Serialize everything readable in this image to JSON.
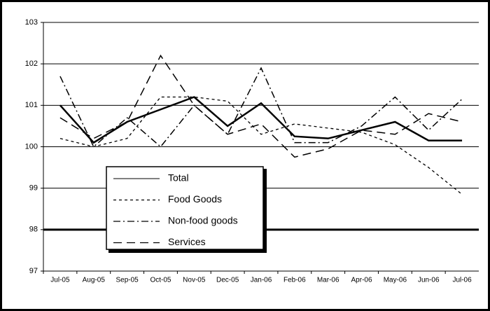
{
  "chart_data": {
    "type": "line",
    "categories": [
      "Jul-05",
      "Aug-05",
      "Sep-05",
      "Oct-05",
      "Nov-05",
      "Dec-05",
      "Jan-06",
      "Feb-06",
      "Mar-06",
      "Apr-06",
      "May-06",
      "Jun-06",
      "Jul-06"
    ],
    "series": [
      {
        "name": "Total",
        "color": "#000000",
        "dash": "solid",
        "values": [
          101.0,
          100.1,
          100.6,
          100.9,
          101.2,
          100.5,
          101.05,
          100.25,
          100.2,
          100.4,
          100.6,
          100.15,
          100.15
        ]
      },
      {
        "name": "Food Goods",
        "color": "#000000",
        "dash": "short",
        "values": [
          100.2,
          100.0,
          100.2,
          101.2,
          101.2,
          101.1,
          100.3,
          100.55,
          100.45,
          100.35,
          100.05,
          99.5,
          98.85
        ]
      },
      {
        "name": "Non-food goods",
        "color": "#000000",
        "dash": "dashdot",
        "values": [
          101.7,
          100.0,
          100.7,
          100.0,
          101.0,
          100.3,
          101.9,
          100.1,
          100.1,
          100.5,
          101.2,
          100.4,
          101.15
        ]
      },
      {
        "name": "Services",
        "color": "#000000",
        "dash": "long",
        "values": [
          100.7,
          100.2,
          100.6,
          102.2,
          101.0,
          100.3,
          100.55,
          99.75,
          99.95,
          100.4,
          100.3,
          100.8,
          100.6
        ]
      }
    ],
    "ylim": [
      97,
      103
    ],
    "yticks": [
      97,
      98,
      99,
      100,
      101,
      102,
      103
    ],
    "grid": true,
    "reference_line": 98
  }
}
